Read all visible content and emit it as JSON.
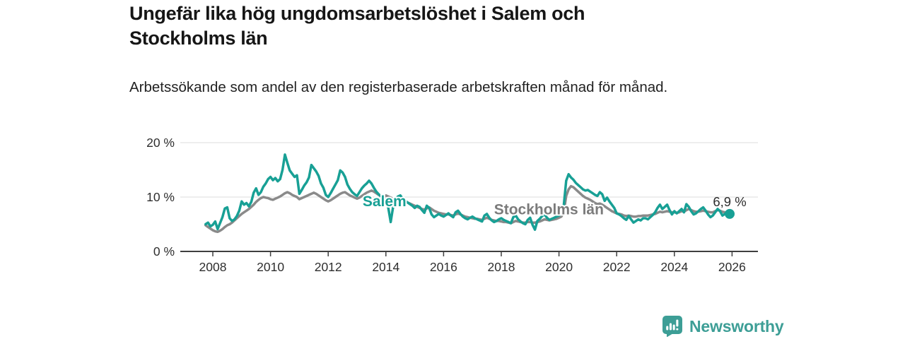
{
  "header": {
    "title": "Ungefär lika hög ungdomsarbetslöshet i Salem och Stockholms län",
    "subtitle": "Arbetssökande som andel av den registerbaserade arbetskraften månad för månad."
  },
  "branding": {
    "logo_text": "Newsworthy",
    "logo_color": "#3d9e96",
    "logo_icon": "bar-chart-speech-bubble-icon"
  },
  "chart_data": {
    "type": "line",
    "unit": "%",
    "grid": "horizontal-only",
    "ylim": [
      0,
      22
    ],
    "y_ticks": [
      {
        "value": 0,
        "label": "0 %"
      },
      {
        "value": 10,
        "label": "10 %"
      },
      {
        "value": 20,
        "label": "20 %"
      }
    ],
    "x_tick_years": [
      2008,
      2010,
      2012,
      2014,
      2016,
      2018,
      2020,
      2022,
      2024,
      2026
    ],
    "series_labels": [
      {
        "text": "Salem",
        "color": "#18a095",
        "x_year": 2013.95,
        "value": 8.3
      },
      {
        "text": "Stockholms län",
        "color": "#7b7b7b",
        "x_year": 2019.65,
        "value": 6.8
      }
    ],
    "series": [
      {
        "name": "Stockholms län",
        "color": "#8a8a8a",
        "start_year": 2007,
        "start_month": 10,
        "values": [
          4.8,
          4.5,
          4.2,
          3.9,
          3.7,
          3.6,
          3.8,
          4.1,
          4.5,
          4.8,
          5.0,
          5.3,
          5.7,
          6.1,
          6.5,
          6.9,
          7.2,
          7.5,
          7.8,
          8.2,
          8.6,
          9.1,
          9.5,
          9.8,
          10.0,
          9.9,
          9.8,
          9.6,
          9.5,
          9.7,
          9.9,
          10.1,
          10.4,
          10.7,
          10.9,
          10.7,
          10.4,
          10.2,
          10.0,
          9.6,
          9.8,
          10.0,
          10.2,
          10.4,
          10.6,
          10.8,
          10.6,
          10.3,
          10.0,
          9.7,
          9.4,
          9.2,
          9.4,
          9.7,
          10.0,
          10.3,
          10.6,
          10.8,
          10.9,
          10.6,
          10.3,
          10.1,
          9.9,
          9.7,
          9.9,
          10.2,
          10.5,
          10.8,
          11.0,
          11.2,
          11.0,
          10.7,
          10.4,
          10.2,
          10.0,
          10.3,
          10.1,
          9.9,
          9.7,
          9.6,
          9.8,
          9.9,
          9.6,
          9.3,
          9.0,
          8.8,
          8.6,
          8.4,
          8.2,
          8.0,
          7.8,
          7.7,
          7.9,
          8.1,
          7.8,
          7.5,
          7.3,
          7.1,
          7.0,
          6.9,
          6.8,
          6.8,
          6.7,
          6.6,
          6.8,
          7.0,
          6.8,
          6.6,
          6.4,
          6.3,
          6.2,
          6.1,
          6.0,
          6.0,
          5.9,
          5.8,
          6.0,
          6.2,
          6.0,
          5.8,
          5.7,
          5.6,
          5.6,
          5.5,
          5.4,
          5.4,
          5.3,
          5.2,
          5.4,
          5.6,
          5.5,
          5.4,
          5.3,
          5.3,
          5.4,
          5.4,
          5.3,
          5.3,
          5.4,
          5.5,
          5.7,
          5.9,
          5.8,
          5.7,
          5.8,
          5.9,
          6.0,
          6.2,
          6.4,
          7.2,
          10.2,
          11.4,
          12.0,
          11.8,
          11.4,
          11.0,
          10.6,
          10.2,
          9.9,
          9.7,
          9.5,
          9.2,
          8.9,
          8.7,
          8.8,
          8.6,
          8.3,
          8.0,
          7.7,
          7.4,
          7.2,
          7.0,
          6.9,
          6.8,
          6.6,
          6.5,
          6.6,
          6.5,
          6.4,
          6.4,
          6.5,
          6.5,
          6.6,
          6.6,
          6.6,
          6.7,
          6.8,
          6.9,
          7.1,
          7.3,
          7.2,
          7.3,
          7.4,
          7.3,
          7.2,
          7.2,
          7.1,
          7.2,
          7.4,
          7.3,
          7.6,
          7.8,
          7.6,
          7.4,
          7.3,
          7.3,
          7.4,
          7.5,
          7.4,
          7.3,
          7.2,
          7.2,
          7.4,
          7.6,
          7.5,
          7.3,
          7.2,
          7.2,
          7.2
        ]
      },
      {
        "name": "Salem",
        "color": "#18a095",
        "start_year": 2007,
        "start_month": 10,
        "end_dot": true,
        "end_label": "6,9 %",
        "values": [
          5.0,
          5.3,
          4.6,
          4.9,
          5.5,
          4.1,
          5.2,
          6.3,
          7.9,
          8.1,
          6.1,
          5.6,
          5.9,
          6.5,
          7.5,
          9.2,
          8.6,
          8.9,
          8.3,
          9.1,
          10.8,
          11.6,
          10.4,
          10.9,
          11.9,
          12.5,
          13.3,
          13.7,
          13.1,
          13.5,
          12.9,
          13.3,
          15.0,
          17.8,
          16.3,
          14.9,
          14.3,
          13.7,
          14.0,
          10.6,
          11.3,
          12.1,
          12.7,
          13.6,
          15.9,
          15.3,
          14.7,
          13.9,
          12.5,
          11.7,
          10.4,
          10.0,
          10.7,
          11.5,
          12.3,
          13.1,
          14.9,
          14.5,
          13.7,
          12.3,
          11.5,
          10.9,
          10.5,
          10.2,
          10.9,
          11.6,
          12.1,
          12.5,
          13.0,
          12.5,
          11.7,
          11.0,
          10.5,
          10.1,
          9.8,
          9.6,
          8.0,
          5.4,
          8.2,
          9.6,
          10.1,
          10.3,
          9.7,
          9.3,
          9.0,
          8.7,
          8.4,
          8.0,
          8.4,
          8.2,
          7.6,
          7.1,
          8.4,
          8.0,
          6.8,
          6.3,
          6.6,
          6.9,
          6.6,
          6.4,
          6.7,
          7.0,
          6.6,
          6.3,
          7.2,
          7.5,
          6.9,
          6.4,
          6.1,
          5.9,
          6.2,
          6.4,
          6.1,
          5.9,
          5.7,
          5.5,
          6.6,
          6.9,
          6.2,
          5.7,
          5.4,
          5.6,
          5.9,
          6.1,
          5.8,
          5.6,
          5.4,
          5.2,
          6.3,
          6.6,
          5.9,
          5.5,
          5.2,
          5.0,
          5.8,
          6.2,
          4.9,
          4.0,
          5.6,
          6.0,
          6.5,
          6.8,
          6.2,
          5.8,
          6.0,
          6.2,
          6.4,
          6.6,
          6.9,
          8.5,
          13.0,
          14.2,
          13.6,
          13.2,
          12.6,
          12.2,
          11.8,
          11.4,
          11.2,
          11.3,
          11.0,
          10.7,
          10.4,
          10.2,
          10.9,
          10.5,
          9.3,
          9.9,
          9.2,
          8.6,
          8.0,
          7.0,
          6.8,
          6.5,
          6.1,
          5.8,
          6.5,
          5.9,
          5.3,
          5.6,
          5.9,
          5.7,
          6.1,
          6.1,
          5.9,
          6.3,
          6.7,
          7.2,
          8.0,
          8.6,
          7.8,
          8.2,
          8.6,
          7.6,
          6.8,
          7.4,
          7.0,
          7.4,
          7.8,
          7.2,
          8.7,
          8.2,
          7.4,
          6.8,
          7.0,
          7.4,
          7.8,
          8.1,
          7.5,
          6.8,
          6.3,
          6.6,
          7.2,
          7.8,
          7.4,
          6.6,
          6.9,
          7.2,
          6.9
        ]
      }
    ]
  }
}
